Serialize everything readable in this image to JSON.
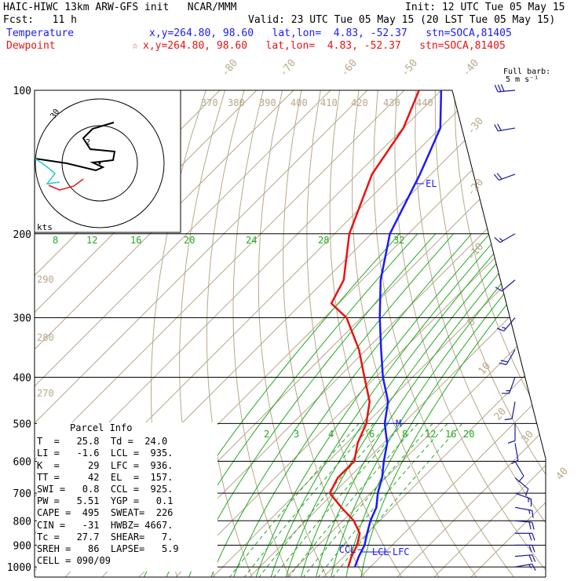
{
  "header": {
    "line1_left": "HAIC-HIWC 13km ARW-GFS init   NCAR/MMM",
    "line1_right": "Init: 12 UTC Tue 05 May 15",
    "line2_left": "Fcst:   11 h",
    "line2_right": "Valid: 23 UTC Tue 05 May 15 (20 LST Tue 05 May 15)",
    "temp_label": "Temperature",
    "temp_info": "x,y=264.80, 98.60   lat,lon=  4.83, -52.37   stn=SOCA,81405",
    "dew_label": "Dewpoint",
    "dew_star": "☆",
    "dew_info": "x,y=264.80, 98.60   lat,lon=  4.83, -52.37   stn=SOCA,81405",
    "barb_note_1": "Full barb:",
    "barb_note_2": "5 m s⁻¹"
  },
  "colors": {
    "temperature": "#1a1aff",
    "dewpoint": "#ee1111",
    "mixing_ratio": "#22aa22",
    "dry_adiabat": "#b8a88a",
    "grid": "#000000",
    "hodo_upper": "#000000",
    "hodo_low": "#22cccc",
    "hodo_red": "#ee1111",
    "barbs": "#1a1a99"
  },
  "chart_data": {
    "type": "line",
    "pressure_ticks": [
      "100",
      "200",
      "300",
      "400",
      "500",
      "600",
      "700",
      "800",
      "900",
      "1000"
    ],
    "pressure_values": [
      100,
      200,
      300,
      400,
      500,
      600,
      700,
      800,
      900,
      1000
    ],
    "skew_temp_labels": [
      "-80",
      "-70",
      "-60",
      "-50",
      "-40",
      "-30",
      "-20",
      "-10",
      "0",
      "10",
      "20",
      "30",
      "40"
    ],
    "theta_labels": [
      "370",
      "380",
      "390",
      "400",
      "410",
      "420",
      "430",
      "440",
      "290",
      "280",
      "270"
    ],
    "mixing_ratio_labels": [
      "8",
      "12",
      "16",
      "20",
      "24",
      "28",
      "32",
      "2",
      "3",
      "4",
      "6",
      "8",
      "12",
      "16",
      "20",
      "24"
    ],
    "temperature_profile": [
      [
        100,
        -80.0
      ],
      [
        120,
        -70.0
      ],
      [
        150,
        -63.0
      ],
      [
        200,
        -55.0
      ],
      [
        250,
        -45.0
      ],
      [
        300,
        -35.0
      ],
      [
        350,
        -26.0
      ],
      [
        400,
        -18.0
      ],
      [
        450,
        -10.0
      ],
      [
        500,
        -5.0
      ],
      [
        550,
        1.0
      ],
      [
        600,
        5.0
      ],
      [
        650,
        9.0
      ],
      [
        700,
        12.0
      ],
      [
        750,
        15.5
      ],
      [
        800,
        17.5
      ],
      [
        850,
        20.0
      ],
      [
        900,
        22.5
      ],
      [
        950,
        24.0
      ],
      [
        1000,
        25.8
      ]
    ],
    "dewpoint_profile": [
      [
        100,
        -86.0
      ],
      [
        120,
        -80.0
      ],
      [
        150,
        -76.0
      ],
      [
        200,
        -66.0
      ],
      [
        250,
        -55.0
      ],
      [
        280,
        -52.0
      ],
      [
        300,
        -44.0
      ],
      [
        350,
        -32.0
      ],
      [
        400,
        -23.0
      ],
      [
        450,
        -15.0
      ],
      [
        500,
        -10.0
      ],
      [
        550,
        -7.0
      ],
      [
        600,
        -3.0
      ],
      [
        650,
        -3.0
      ],
      [
        700,
        -1.0
      ],
      [
        750,
        6.0
      ],
      [
        800,
        13.0
      ],
      [
        850,
        18.0
      ],
      [
        900,
        20.5
      ],
      [
        950,
        22.0
      ],
      [
        1000,
        24.0
      ]
    ],
    "level_labels": [
      {
        "text": "EL",
        "pressure": 157,
        "series": "temperature"
      },
      {
        "text": "M",
        "pressure": 500,
        "series": "temperature"
      },
      {
        "text": "CCL",
        "pressure": 920,
        "series": "temperature"
      },
      {
        "text": "LCL",
        "pressure": 930,
        "series": "temperature"
      },
      {
        "text": "LFC",
        "pressure": 930,
        "series": "temperature"
      }
    ],
    "hodograph": {
      "unit_label": "kts",
      "ring_label": "2",
      "ring_label_outer": "30"
    },
    "wind_barbs": [
      [
        100,
        265,
        15
      ],
      [
        120,
        260,
        12
      ],
      [
        150,
        250,
        10
      ],
      [
        200,
        240,
        8
      ],
      [
        250,
        230,
        7
      ],
      [
        300,
        220,
        8
      ],
      [
        350,
        210,
        10
      ],
      [
        400,
        200,
        9
      ],
      [
        450,
        190,
        7
      ],
      [
        500,
        180,
        6
      ],
      [
        550,
        170,
        5
      ],
      [
        600,
        150,
        6
      ],
      [
        650,
        130,
        7
      ],
      [
        700,
        110,
        8
      ],
      [
        750,
        100,
        9
      ],
      [
        800,
        95,
        10
      ],
      [
        850,
        90,
        11
      ],
      [
        900,
        90,
        12
      ],
      [
        950,
        85,
        10
      ],
      [
        1000,
        80,
        8
      ]
    ],
    "wind_barb_unit": "m s-1"
  },
  "parcel": {
    "title": "Parcel Info",
    "rows": [
      "T  =   25.8  Td =  24.0",
      "LI =   -1.6  LCL =  935.",
      "K  =     29  LFC =  936.",
      "TT =     42  EL  =  157.",
      "SWI =   0.8  CCL =  925.",
      "PW =   5.51  YGP =   0.1",
      "CAPE =  495  SWEAT=  226",
      "CIN =   -31  HWBZ= 4667.",
      "Tc =   27.7  SHEAR=   7.",
      "SREH =   86  LAPSE=   5.9",
      "CELL = 090/09"
    ]
  }
}
